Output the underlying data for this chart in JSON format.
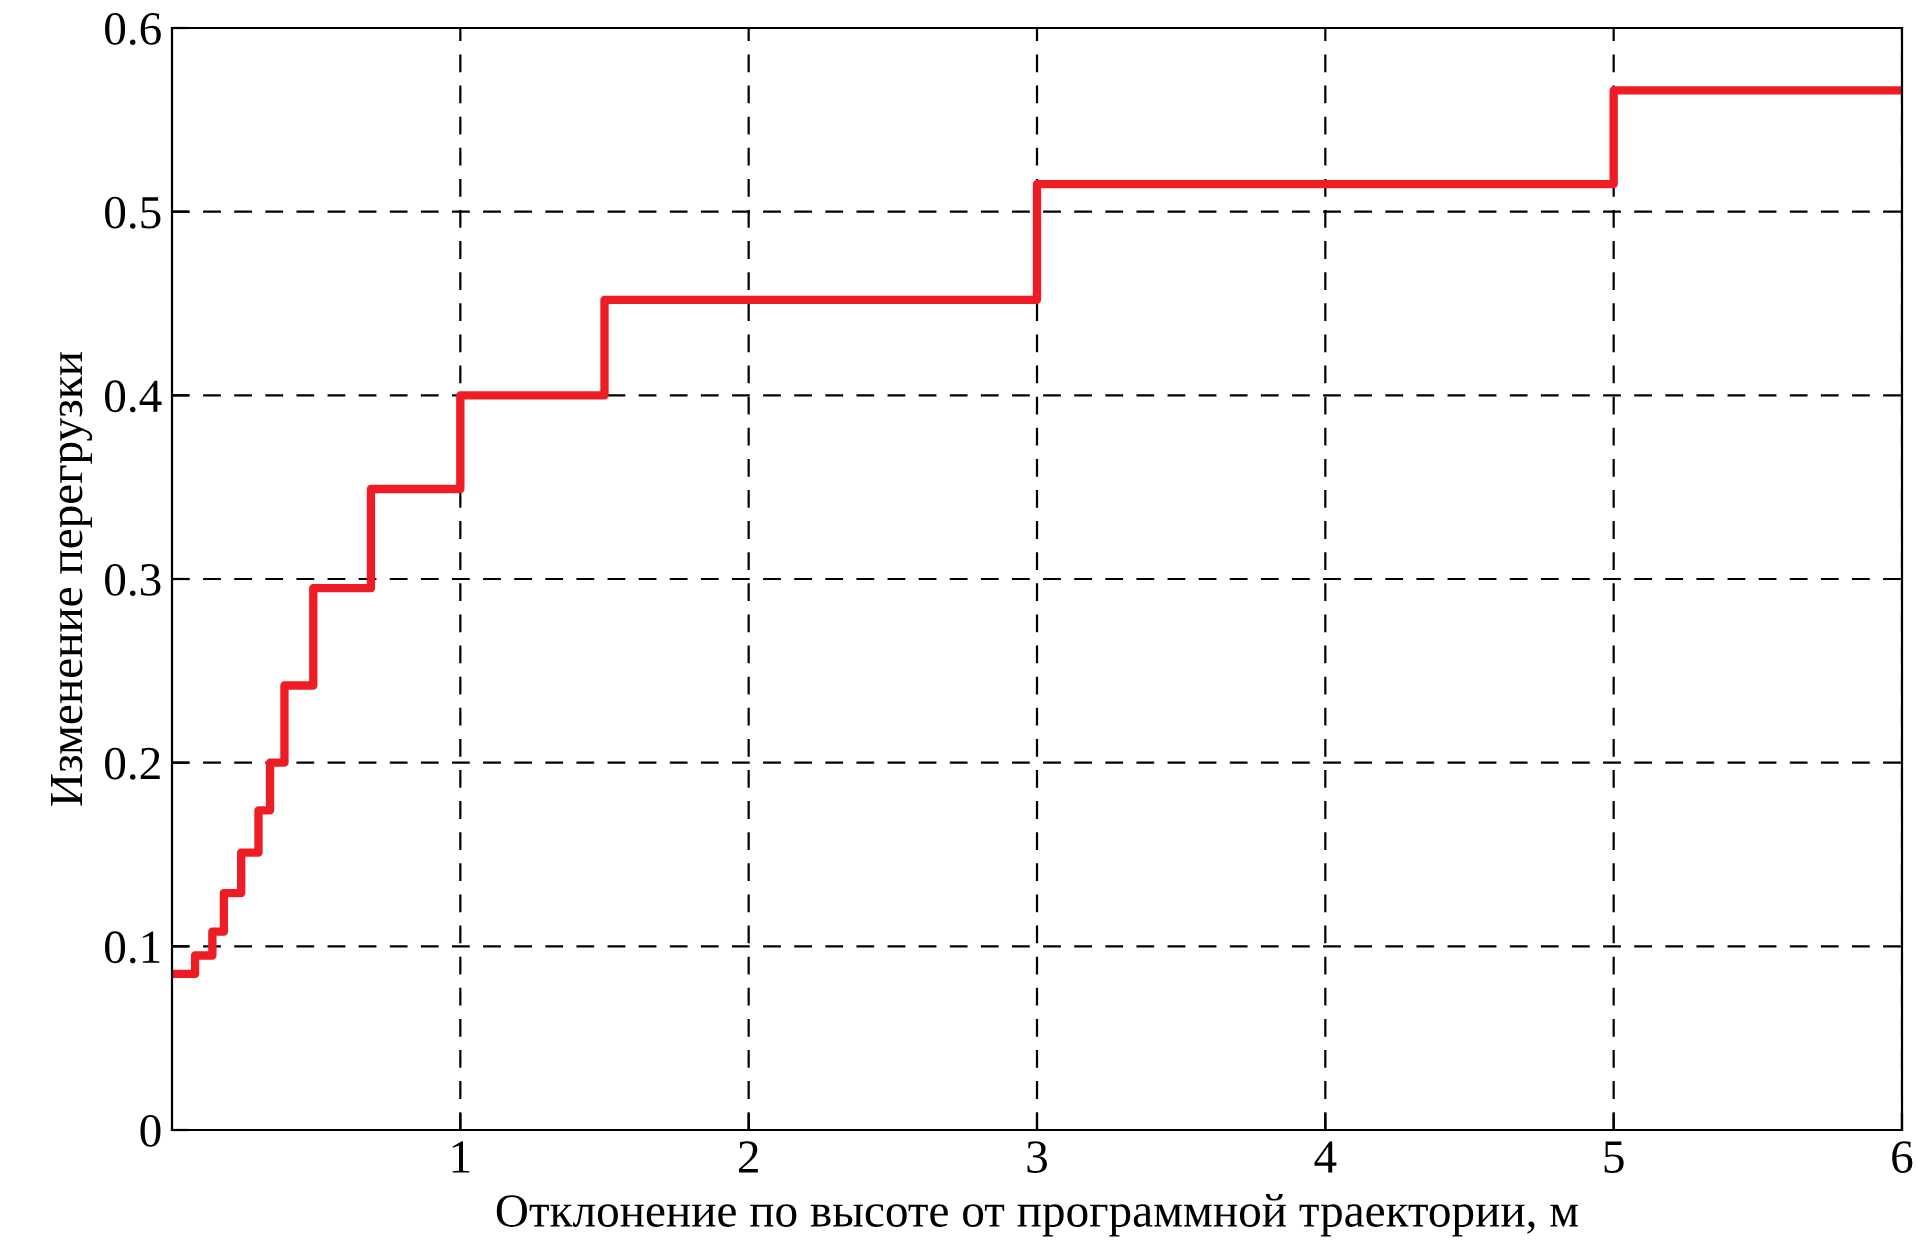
{
  "chart_data": {
    "type": "step",
    "xlabel": "Отклонение по высоте от программной траектории, м",
    "ylabel": "Изменение перегрузки",
    "series": [
      {
        "color": "#ee1c25",
        "x": [
          0,
          0.08,
          0.14,
          0.18,
          0.24,
          0.3,
          0.34,
          0.39,
          0.49,
          0.69,
          1,
          1.5,
          3,
          5,
          6
        ],
        "values": [
          0.085,
          0.095,
          0.108,
          0.129,
          0.151,
          0.174,
          0.2,
          0.242,
          0.295,
          0.349,
          0.4,
          0.452,
          0.515,
          0.566,
          0.566
        ]
      }
    ],
    "xlim": [
      0,
      6
    ],
    "xticks": [
      1,
      2,
      3,
      4,
      5,
      6
    ],
    "ylim": [
      0,
      0.6
    ],
    "yticks": [
      0,
      0.1,
      0.2,
      0.3,
      0.4,
      0.5,
      0.6
    ],
    "grid": true,
    "line_style": "solid",
    "legend": false
  }
}
